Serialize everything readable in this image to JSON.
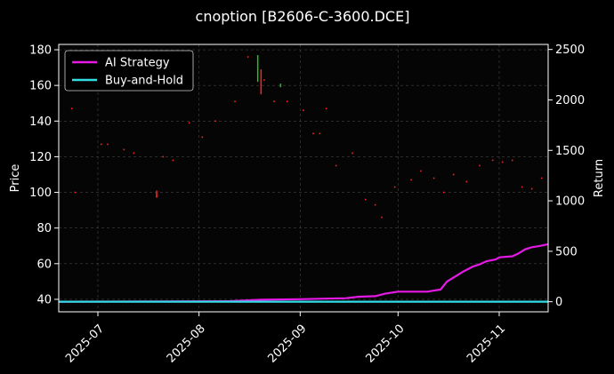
{
  "chart_data": {
    "type": "line",
    "title": "cnoption [B2606-C-3600.DCE]",
    "xlabel": "",
    "ylabel_left": "Price",
    "ylabel_right": "Return",
    "x_range": [
      "2025-06-19",
      "2025-11-16"
    ],
    "x_ticks": [
      "2025-07-01",
      "2025-08-01",
      "2025-09-01",
      "2025-10-01",
      "2025-11-01"
    ],
    "x_tick_labels": [
      "2025-07",
      "2025-08",
      "2025-09",
      "2025-10",
      "2025-11"
    ],
    "ylim_left": [
      33,
      183
    ],
    "yticks_left": [
      40,
      60,
      80,
      100,
      120,
      140,
      160,
      180
    ],
    "ylim_right": [
      -100,
      2550
    ],
    "yticks_right": [
      0,
      500,
      1000,
      1500,
      2000,
      2500
    ],
    "grid": true,
    "legend_position": "top-left",
    "colors": {
      "strategy": "#e619e6",
      "buy_hold": "#33dde6",
      "up": "#19c819",
      "down": "#ff2020",
      "background": "#000000",
      "grid": "#444444"
    },
    "series": [
      {
        "name": "AI Strategy",
        "axis": "right",
        "color": "#e619e6",
        "points": [
          [
            "2025-06-19",
            0
          ],
          [
            "2025-08-10",
            5
          ],
          [
            "2025-08-20",
            20
          ],
          [
            "2025-09-01",
            25
          ],
          [
            "2025-09-08",
            30
          ],
          [
            "2025-09-15",
            35
          ],
          [
            "2025-09-19",
            50
          ],
          [
            "2025-09-24",
            55
          ],
          [
            "2025-09-27",
            80
          ],
          [
            "2025-10-01",
            100
          ],
          [
            "2025-10-10",
            100
          ],
          [
            "2025-10-12",
            110
          ],
          [
            "2025-10-14",
            120
          ],
          [
            "2025-10-16",
            200
          ],
          [
            "2025-10-18",
            240
          ],
          [
            "2025-10-21",
            300
          ],
          [
            "2025-10-24",
            350
          ],
          [
            "2025-10-26",
            370
          ],
          [
            "2025-10-28",
            400
          ],
          [
            "2025-10-31",
            420
          ],
          [
            "2025-11-01",
            440
          ],
          [
            "2025-11-05",
            450
          ],
          [
            "2025-11-07",
            480
          ],
          [
            "2025-11-09",
            520
          ],
          [
            "2025-11-11",
            540
          ],
          [
            "2025-11-13",
            550
          ],
          [
            "2025-11-16",
            570
          ]
        ]
      },
      {
        "name": "Buy-and-Hold",
        "axis": "right",
        "color": "#33dde6",
        "points": [
          [
            "2025-06-19",
            0
          ],
          [
            "2025-11-16",
            0
          ]
        ]
      }
    ],
    "price_marks": [
      [
        "2025-06-23",
        147
      ],
      [
        "2025-06-24",
        100
      ],
      [
        "2025-07-02",
        127
      ],
      [
        "2025-07-04",
        127
      ],
      [
        "2025-07-09",
        124
      ],
      [
        "2025-07-12",
        122
      ],
      [
        "2025-07-19",
        98
      ],
      [
        "2025-07-21",
        120
      ],
      [
        "2025-07-24",
        118
      ],
      [
        "2025-07-29",
        139
      ],
      [
        "2025-08-02",
        131
      ],
      [
        "2025-08-06",
        140
      ],
      [
        "2025-08-12",
        151
      ],
      [
        "2025-08-16",
        176
      ],
      [
        "2025-08-21",
        163
      ],
      [
        "2025-08-24",
        151
      ],
      [
        "2025-08-28",
        151
      ],
      [
        "2025-09-02",
        146
      ],
      [
        "2025-09-05",
        133
      ],
      [
        "2025-09-07",
        133
      ],
      [
        "2025-09-09",
        147
      ],
      [
        "2025-09-12",
        115
      ],
      [
        "2025-09-17",
        122
      ],
      [
        "2025-09-21",
        96
      ],
      [
        "2025-09-24",
        93
      ],
      [
        "2025-09-26",
        86
      ],
      [
        "2025-09-30",
        103
      ],
      [
        "2025-10-05",
        107
      ],
      [
        "2025-10-08",
        112
      ],
      [
        "2025-10-12",
        108
      ],
      [
        "2025-10-15",
        100
      ],
      [
        "2025-10-18",
        110
      ],
      [
        "2025-10-22",
        106
      ],
      [
        "2025-10-26",
        115
      ],
      [
        "2025-10-30",
        118
      ],
      [
        "2025-11-02",
        117
      ],
      [
        "2025-11-05",
        118
      ],
      [
        "2025-11-08",
        103
      ],
      [
        "2025-11-11",
        102
      ],
      [
        "2025-11-14",
        108
      ]
    ],
    "candles": [
      {
        "date": "2025-07-19",
        "low": 97,
        "high": 101,
        "color": "down"
      },
      {
        "date": "2025-08-19",
        "low": 162,
        "high": 177,
        "color": "up"
      },
      {
        "date": "2025-08-20",
        "low": 155,
        "high": 169,
        "color": "down"
      },
      {
        "date": "2025-08-26",
        "low": 159,
        "high": 161,
        "color": "up"
      }
    ]
  }
}
